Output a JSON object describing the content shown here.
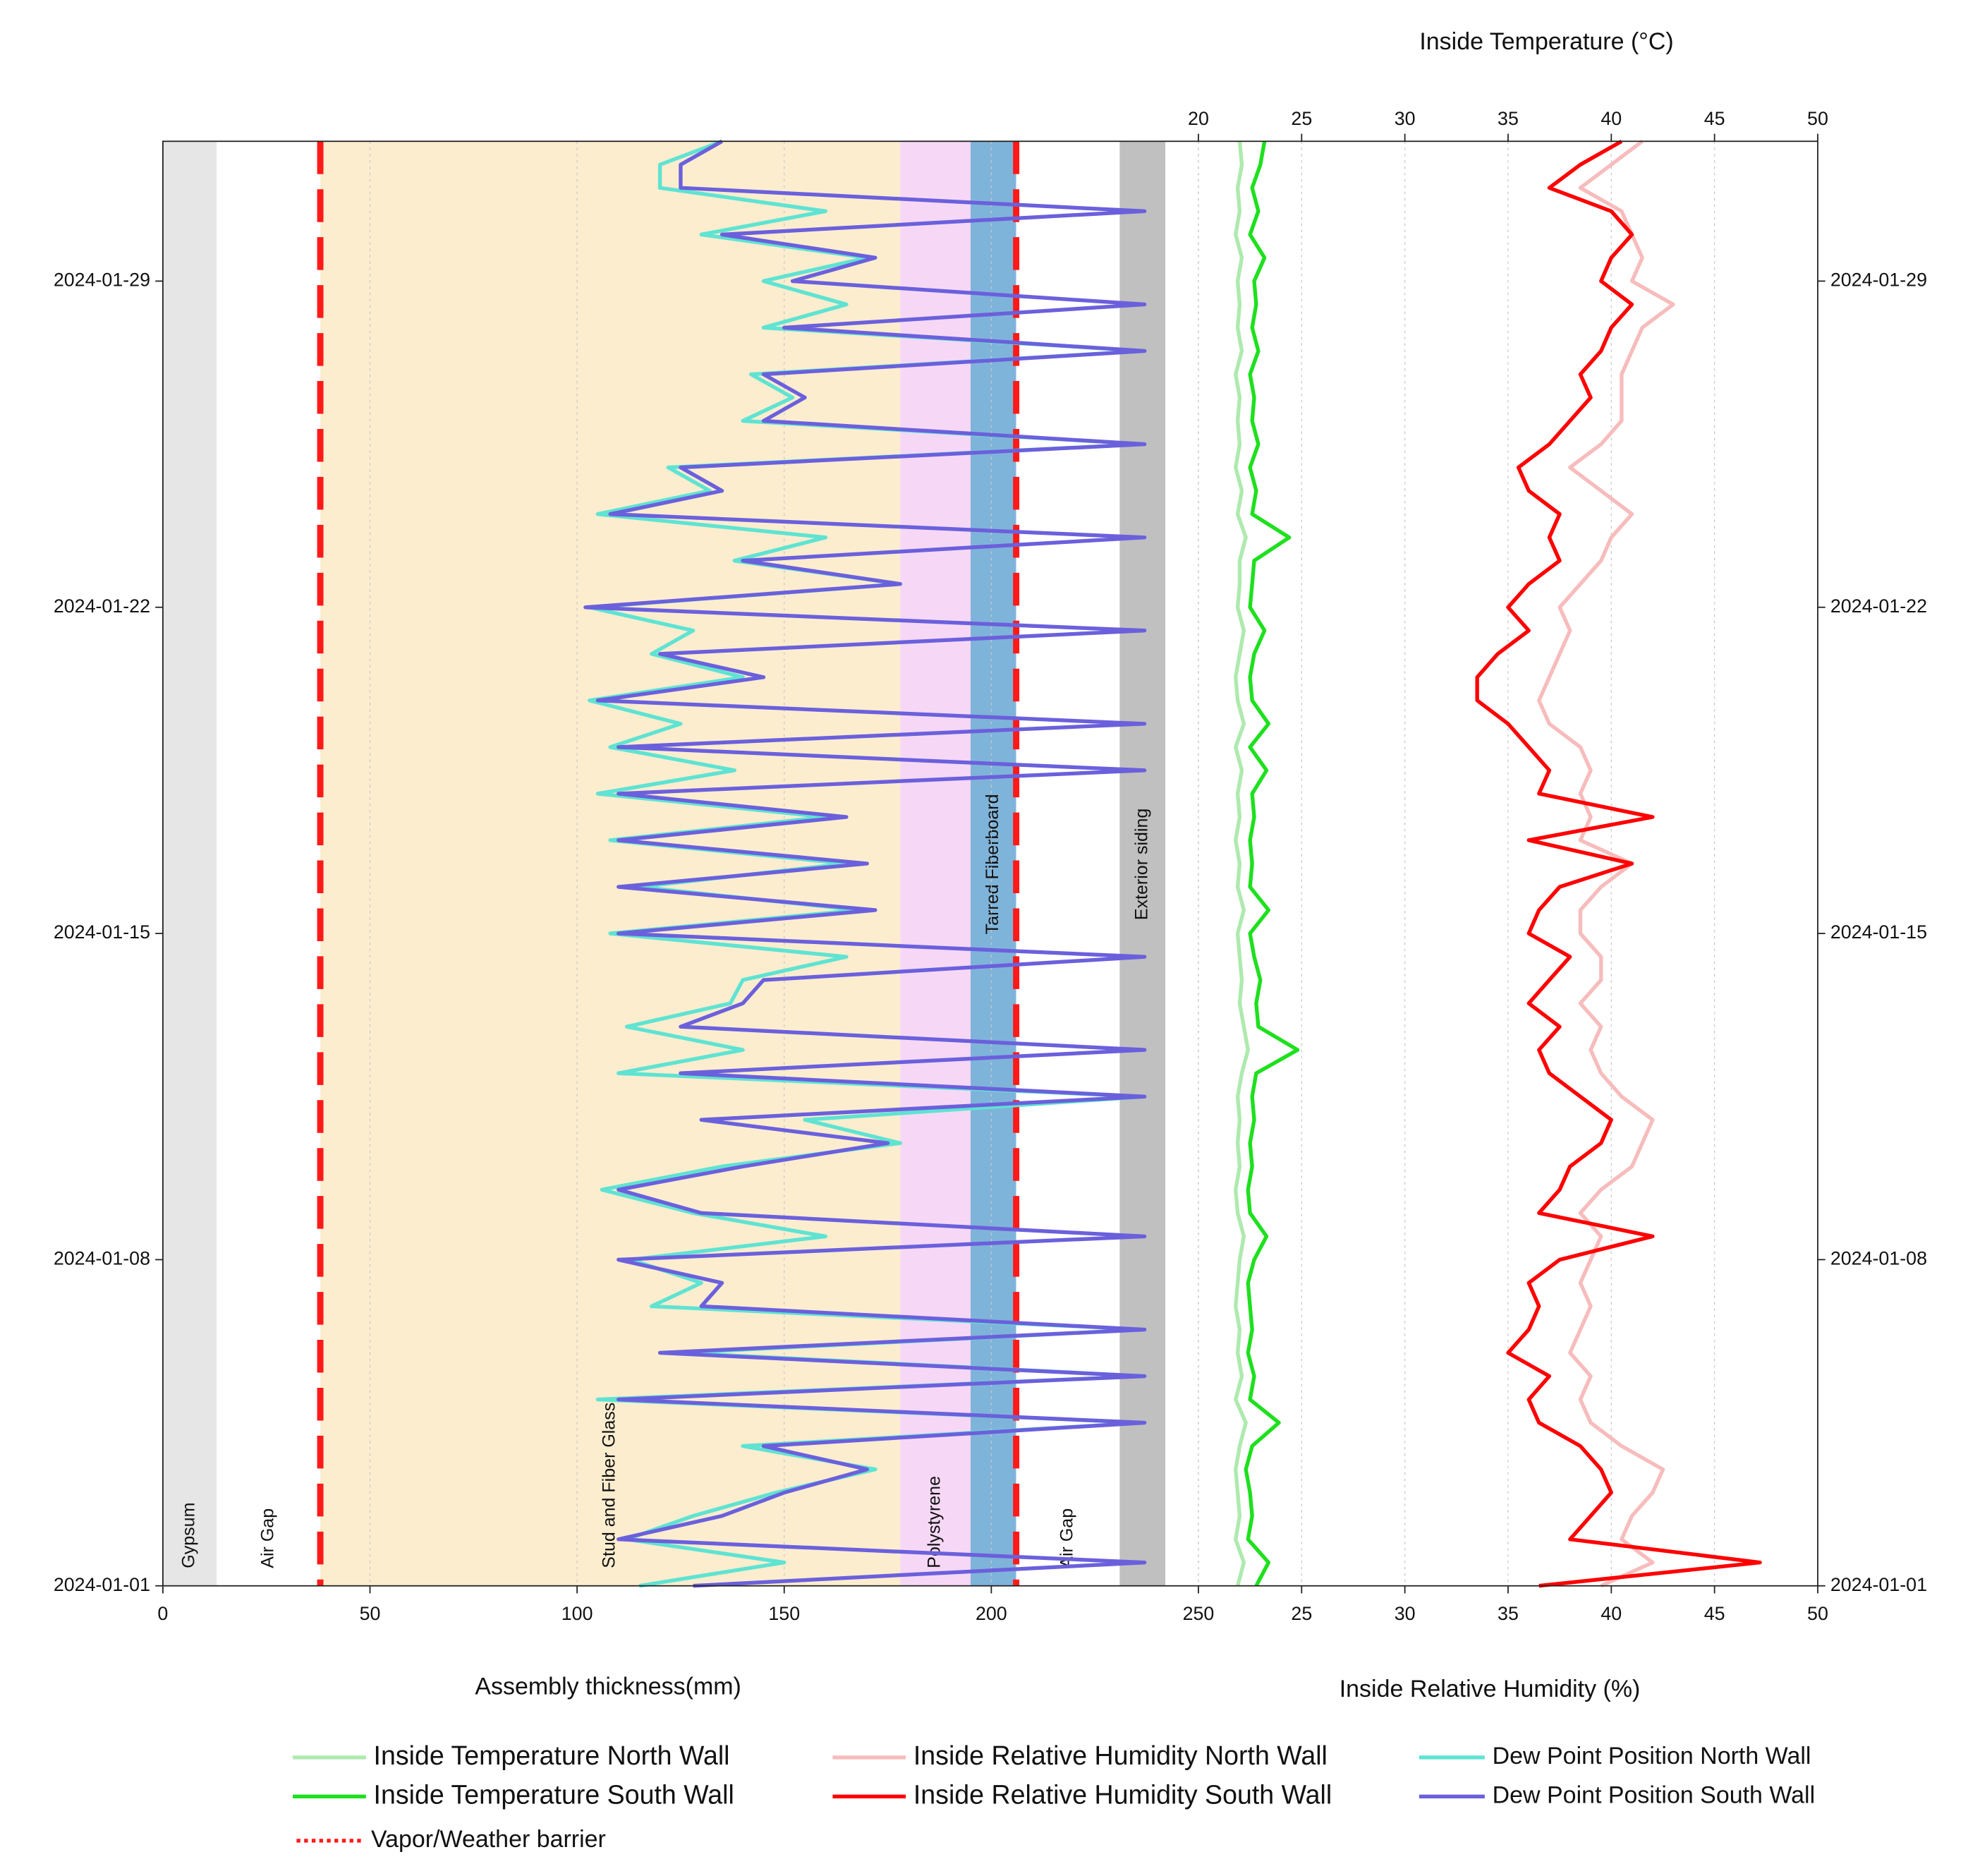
{
  "chart_data": {
    "type": "line",
    "x_label": "Assembly thickness(mm)",
    "x2_label": "Inside Relative Humidity (%)",
    "x2_top_label": "Inside Temperature (°C)",
    "xlim": [
      0,
      250
    ],
    "xticks": [
      0,
      50,
      100,
      150,
      200,
      250
    ],
    "x2lim": [
      20,
      50
    ],
    "x2ticks": [
      20,
      25,
      30,
      35,
      40,
      45,
      50
    ],
    "ylim": [
      0,
      31
    ],
    "yticks": [
      {
        "value": 0,
        "label": "2024-01-01"
      },
      {
        "value": 7,
        "label": "2024-01-08"
      },
      {
        "value": 14,
        "label": "2024-01-15"
      },
      {
        "value": 21,
        "label": "2024-01-22"
      },
      {
        "value": 28,
        "label": "2024-01-29"
      }
    ],
    "grid": true,
    "y": [
      0,
      0.5,
      1,
      1.5,
      2,
      2.5,
      3,
      3.5,
      4,
      4.5,
      5,
      5.5,
      6,
      6.5,
      7,
      7.5,
      8,
      8.5,
      9,
      9.5,
      10,
      10.5,
      11,
      11.5,
      12,
      12.5,
      13,
      13.5,
      14,
      14.5,
      15,
      15.5,
      16,
      16.5,
      17,
      17.5,
      18,
      18.5,
      19,
      19.5,
      20,
      20.5,
      21,
      21.5,
      22,
      22.5,
      23,
      23.5,
      24,
      24.5,
      25,
      25.5,
      26,
      26.5,
      27,
      27.5,
      28,
      28.5,
      29,
      29.5,
      30,
      30.5,
      31
    ],
    "layers": [
      {
        "label": "Gypsum",
        "range": [
          0,
          13
        ],
        "color": "#e6e6e6",
        "label_side": "bottom"
      },
      {
        "label": "Air Gap",
        "range": [
          13,
          38
        ],
        "color": "#ffffff",
        "label_side": "bottom"
      },
      {
        "label": "Stud and Fiber Glass",
        "range": [
          38,
          178
        ],
        "color": "#fcedcf",
        "label_side": "bottom"
      },
      {
        "label": "Polystyrene",
        "range": [
          178,
          195
        ],
        "color": "#f6d8f6",
        "label_side": "bottom"
      },
      {
        "label": "Tarred Fiberboard",
        "range": [
          195,
          206
        ],
        "color": "#7fb4da",
        "label_side": "top"
      },
      {
        "label": "Air Gap",
        "range": [
          206,
          231
        ],
        "color": "#ffffff",
        "label_side": "bottom"
      },
      {
        "label": "Exterior siding",
        "range": [
          231,
          242
        ],
        "color": "#c0c0c0",
        "label_side": "top"
      }
    ],
    "barrier": {
      "name": "Vapor/Weather barrier",
      "positions": [
        38,
        206
      ],
      "color": "#ff1a1a"
    },
    "series": [
      {
        "name": "Inside Temperature North Wall",
        "color": "#aeeaae",
        "axis": "x2",
        "values": [
          21.9,
          22.2,
          21.8,
          22.0,
          21.9,
          21.8,
          22.0,
          22.3,
          21.8,
          22.1,
          21.9,
          22.0,
          21.8,
          21.9,
          22.0,
          22.2,
          21.9,
          21.8,
          22.0,
          21.9,
          22.0,
          21.9,
          22.1,
          22.4,
          22.2,
          22.0,
          22.1,
          22.0,
          21.9,
          22.2,
          21.9,
          22.0,
          21.8,
          22.0,
          21.9,
          22.1,
          21.8,
          22.2,
          21.9,
          21.8,
          22.0,
          22.2,
          21.9,
          22.0,
          22.0,
          22.3,
          21.9,
          22.1,
          21.8,
          22.0,
          21.9,
          22.0,
          21.8,
          22.1,
          21.9,
          22.0,
          21.9,
          22.1,
          21.8,
          22.0,
          21.9,
          22.1,
          22.0
        ]
      },
      {
        "name": "Inside Temperature South Wall",
        "color": "#1ee01e",
        "axis": "x2",
        "values": [
          22.8,
          23.4,
          22.4,
          22.6,
          22.5,
          22.3,
          22.6,
          23.9,
          22.5,
          22.7,
          22.4,
          22.6,
          22.5,
          22.4,
          22.7,
          23.3,
          22.5,
          22.4,
          22.6,
          22.5,
          22.7,
          22.6,
          22.8,
          24.8,
          22.9,
          22.8,
          23.0,
          22.7,
          22.5,
          23.4,
          22.5,
          22.6,
          22.5,
          22.7,
          22.6,
          23.3,
          22.5,
          23.4,
          22.6,
          22.5,
          22.7,
          23.2,
          22.5,
          22.6,
          22.7,
          24.4,
          22.6,
          22.8,
          22.5,
          22.9,
          22.6,
          22.7,
          22.5,
          22.9,
          22.6,
          22.8,
          22.7,
          23.2,
          22.5,
          22.9,
          22.6,
          23.0,
          23.2
        ]
      },
      {
        "name": "Inside Relative Humidity North Wall",
        "color": "#f7bcbc",
        "axis": "x2",
        "values": [
          39.5,
          42,
          40.5,
          41,
          42,
          42.5,
          40.5,
          39,
          38.5,
          39,
          38,
          38.5,
          39,
          38.5,
          39,
          39.5,
          38.5,
          39.5,
          41,
          41.5,
          42,
          40.5,
          39.5,
          39,
          39.5,
          38.5,
          39.5,
          39.5,
          38.5,
          38.5,
          39.5,
          41,
          38.5,
          39,
          38.5,
          39,
          38.5,
          37,
          36.5,
          37,
          37.5,
          38,
          37.5,
          38.5,
          39.5,
          40,
          41,
          39.5,
          38,
          39.5,
          40.5,
          40.5,
          40.5,
          41,
          41.5,
          43,
          41,
          41.5,
          41,
          40.5,
          38.5,
          40,
          41.5
        ]
      },
      {
        "name": "Inside Relative Humidity South Wall",
        "color": "#ff0000",
        "axis": "x2",
        "values": [
          36.5,
          47.2,
          38,
          39,
          40,
          39.5,
          38.5,
          36.5,
          36,
          37,
          35,
          36,
          36.5,
          36,
          37.5,
          42,
          36.5,
          37.5,
          38,
          39.5,
          40,
          38.5,
          37,
          36.5,
          37.5,
          36,
          37,
          38,
          36,
          36.5,
          37.5,
          41,
          36,
          42,
          36.5,
          37,
          36,
          35,
          33.5,
          33.5,
          34.5,
          36,
          35,
          36,
          37.5,
          37,
          37.5,
          36,
          35.5,
          37,
          38,
          39,
          38.5,
          39.5,
          40,
          41,
          39.5,
          40,
          41,
          40,
          37,
          38.5,
          40.5
        ]
      },
      {
        "name": "Dew Point Position North Wall",
        "color": "#5fe3d2",
        "axis": "x",
        "values": [
          115,
          150,
          112,
          128,
          148,
          172,
          140,
          237,
          105,
          237,
          125,
          237,
          118,
          130,
          113,
          160,
          128,
          106,
          135,
          178,
          155,
          237,
          110,
          140,
          112,
          137,
          140,
          165,
          108,
          168,
          115,
          165,
          108,
          160,
          105,
          138,
          108,
          125,
          103,
          140,
          118,
          128,
          103,
          178,
          138,
          160,
          105,
          132,
          122,
          237,
          140,
          152,
          142,
          237,
          145,
          165,
          145,
          170,
          130,
          160,
          120,
          120,
          135
        ]
      },
      {
        "name": "Dew Point Position South Wall",
        "color": "#6b60dc",
        "axis": "x",
        "values": [
          128,
          237,
          110,
          135,
          150,
          170,
          145,
          237,
          110,
          237,
          120,
          237,
          130,
          135,
          110,
          237,
          130,
          110,
          140,
          175,
          130,
          237,
          125,
          237,
          125,
          140,
          145,
          237,
          110,
          172,
          110,
          170,
          110,
          165,
          110,
          237,
          110,
          237,
          105,
          145,
          120,
          237,
          102,
          178,
          140,
          237,
          108,
          135,
          125,
          237,
          145,
          155,
          145,
          237,
          150,
          237,
          152,
          172,
          135,
          237,
          125,
          125,
          135
        ]
      }
    ]
  }
}
